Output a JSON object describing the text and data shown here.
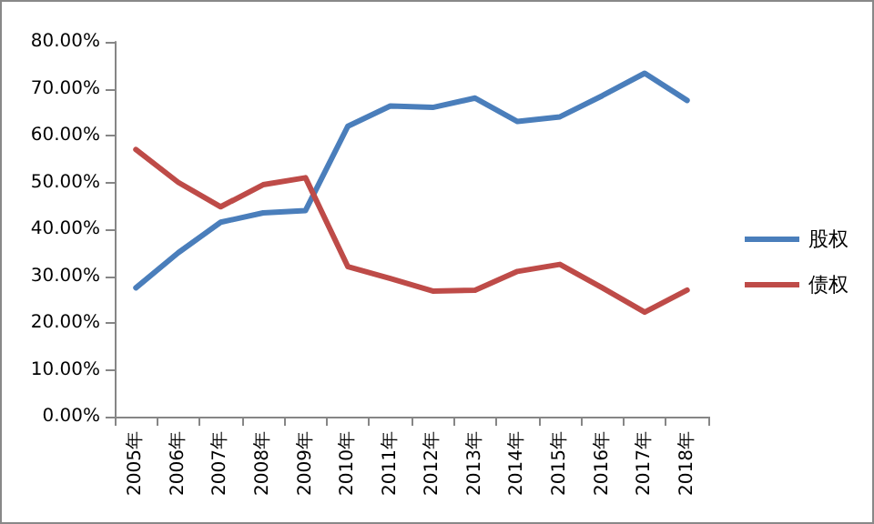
{
  "chart_data": {
    "type": "line",
    "categories": [
      "2005年",
      "2006年",
      "2007年",
      "2008年",
      "2009年",
      "2010年",
      "2011年",
      "2012年",
      "2013年",
      "2014年",
      "2015年",
      "2016年",
      "2017年",
      "2018年"
    ],
    "series": [
      {
        "name": "股权",
        "color": "#4a7ebb",
        "values": [
          27.5,
          35,
          41.5,
          43.5,
          44,
          62,
          66.3,
          66,
          68,
          63,
          64,
          68.5,
          73.3,
          67.5
        ]
      },
      {
        "name": "债权",
        "color": "#be4b48",
        "values": [
          57,
          50,
          44.8,
          49.5,
          51,
          32,
          29.5,
          26.8,
          27,
          31,
          32.5,
          27.5,
          22.3,
          27
        ]
      }
    ],
    "ylim": [
      0,
      80
    ],
    "yticks": [
      {
        "value": 0,
        "label": "0.00%"
      },
      {
        "value": 10,
        "label": "10.00%"
      },
      {
        "value": 20,
        "label": "20.00%"
      },
      {
        "value": 30,
        "label": "30.00%"
      },
      {
        "value": 40,
        "label": "40.00%"
      },
      {
        "value": 50,
        "label": "50.00%"
      },
      {
        "value": 60,
        "label": "60.00%"
      },
      {
        "value": 70,
        "label": "70.00%"
      },
      {
        "value": 80,
        "label": "80.00%"
      }
    ],
    "grid": false,
    "legend": "right",
    "marker": "none",
    "line_style": "solid"
  }
}
